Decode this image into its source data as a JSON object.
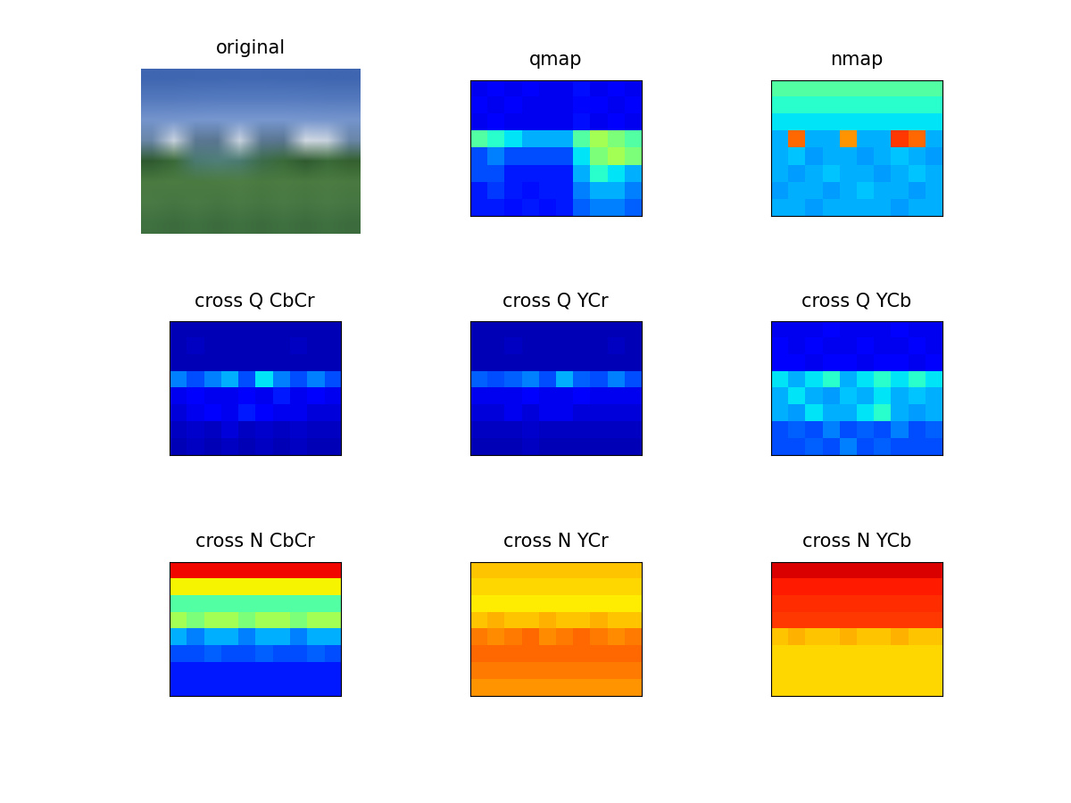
{
  "chart_data": [
    {
      "type": "image",
      "title": "original",
      "tick_labels": false,
      "pixels": [
        [
          "#3f66b0",
          "#3f66b0",
          "#4068b2",
          "#4068b2",
          "#4169b3",
          "#4169b3",
          "#4068b2",
          "#4068b2",
          "#3f66b0",
          "#3f66b0"
        ],
        [
          "#5479bd",
          "#5479bd",
          "#557abe",
          "#567bbf",
          "#567bbf",
          "#567bbf",
          "#567bbf",
          "#557abe",
          "#5479bd",
          "#5479bd"
        ],
        [
          "#7494cc",
          "#7595cd",
          "#7696ce",
          "#7797cf",
          "#7797cf",
          "#7797cf",
          "#7797cf",
          "#7696ce",
          "#7595cd",
          "#7494cc"
        ],
        [
          "#6a86a8",
          "#c8d2df",
          "#5c7894",
          "#5a7692",
          "#c8d2df",
          "#5c7894",
          "#5a7692",
          "#d0d8e2",
          "#c8d2df",
          "#6a86a8"
        ],
        [
          "#2f5a30",
          "#3a6a38",
          "#4a7a70",
          "#4f7f78",
          "#4a7a70",
          "#3c6c4a",
          "#3a6a38",
          "#2f5a30",
          "#3a6a38",
          "#34602f"
        ],
        [
          "#4a7a40",
          "#4c7c42",
          "#4a7a40",
          "#4c7c42",
          "#4e7e44",
          "#4a7a40",
          "#4c7c42",
          "#4a7a40",
          "#4c7c42",
          "#4a7a40"
        ],
        [
          "#4a7a45",
          "#467642",
          "#4a7a45",
          "#467642",
          "#4a7a45",
          "#467642",
          "#4a7a45",
          "#467642",
          "#4a7a45",
          "#467642"
        ],
        [
          "#3f7040",
          "#3c6c3d",
          "#3f7040",
          "#3c6c3d",
          "#3f7040",
          "#3c6c3d",
          "#3f7040",
          "#3c6c3d",
          "#3f7040",
          "#3c6c3d"
        ]
      ]
    },
    {
      "type": "heatmap",
      "title": "qmap",
      "color": "jet",
      "clim": [
        0,
        1
      ],
      "tick_labels": false,
      "cells": [
        [
          0.1,
          0.12,
          0.1,
          0.11,
          0.1,
          0.1,
          0.14,
          0.1,
          0.12,
          0.1
        ],
        [
          0.12,
          0.1,
          0.11,
          0.1,
          0.1,
          0.1,
          0.13,
          0.11,
          0.1,
          0.12
        ],
        [
          0.1,
          0.11,
          0.1,
          0.1,
          0.1,
          0.1,
          0.14,
          0.1,
          0.11,
          0.1
        ],
        [
          0.45,
          0.4,
          0.35,
          0.3,
          0.3,
          0.3,
          0.45,
          0.55,
          0.5,
          0.45
        ],
        [
          0.2,
          0.25,
          0.2,
          0.2,
          0.2,
          0.2,
          0.35,
          0.5,
          0.55,
          0.5
        ],
        [
          0.2,
          0.2,
          0.15,
          0.15,
          0.15,
          0.15,
          0.3,
          0.4,
          0.35,
          0.3
        ],
        [
          0.15,
          0.18,
          0.15,
          0.14,
          0.15,
          0.15,
          0.25,
          0.3,
          0.3,
          0.25
        ],
        [
          0.15,
          0.15,
          0.14,
          0.15,
          0.14,
          0.15,
          0.22,
          0.25,
          0.25,
          0.22
        ]
      ]
    },
    {
      "type": "heatmap",
      "title": "nmap",
      "color": "jet",
      "clim": [
        0,
        1
      ],
      "tick_labels": false,
      "cells": [
        [
          0.45,
          0.45,
          0.45,
          0.45,
          0.45,
          0.45,
          0.45,
          0.45,
          0.45,
          0.45
        ],
        [
          0.4,
          0.4,
          0.4,
          0.4,
          0.4,
          0.4,
          0.4,
          0.4,
          0.4,
          0.4
        ],
        [
          0.35,
          0.35,
          0.35,
          0.35,
          0.35,
          0.35,
          0.35,
          0.35,
          0.35,
          0.35
        ],
        [
          0.3,
          0.8,
          0.3,
          0.3,
          0.75,
          0.3,
          0.3,
          0.85,
          0.8,
          0.3
        ],
        [
          0.3,
          0.32,
          0.28,
          0.3,
          0.3,
          0.28,
          0.3,
          0.32,
          0.3,
          0.28
        ],
        [
          0.3,
          0.28,
          0.3,
          0.32,
          0.3,
          0.3,
          0.28,
          0.3,
          0.32,
          0.3
        ],
        [
          0.28,
          0.3,
          0.3,
          0.28,
          0.3,
          0.32,
          0.3,
          0.3,
          0.28,
          0.3
        ],
        [
          0.3,
          0.3,
          0.28,
          0.3,
          0.3,
          0.3,
          0.3,
          0.28,
          0.3,
          0.3
        ]
      ]
    },
    {
      "type": "heatmap",
      "title": "cross Q CbCr",
      "color": "jet",
      "clim": [
        0,
        1
      ],
      "tick_labels": false,
      "cells": [
        [
          0.05,
          0.05,
          0.05,
          0.05,
          0.05,
          0.05,
          0.05,
          0.05,
          0.05,
          0.05
        ],
        [
          0.05,
          0.06,
          0.05,
          0.05,
          0.05,
          0.05,
          0.05,
          0.06,
          0.05,
          0.05
        ],
        [
          0.05,
          0.05,
          0.05,
          0.05,
          0.05,
          0.05,
          0.05,
          0.05,
          0.05,
          0.05
        ],
        [
          0.25,
          0.2,
          0.25,
          0.3,
          0.2,
          0.35,
          0.25,
          0.2,
          0.25,
          0.2
        ],
        [
          0.1,
          0.12,
          0.1,
          0.1,
          0.12,
          0.1,
          0.15,
          0.1,
          0.12,
          0.1
        ],
        [
          0.08,
          0.1,
          0.12,
          0.1,
          0.15,
          0.12,
          0.1,
          0.1,
          0.08,
          0.08
        ],
        [
          0.06,
          0.07,
          0.06,
          0.08,
          0.06,
          0.07,
          0.06,
          0.07,
          0.06,
          0.06
        ],
        [
          0.05,
          0.06,
          0.05,
          0.06,
          0.05,
          0.06,
          0.05,
          0.06,
          0.05,
          0.05
        ]
      ]
    },
    {
      "type": "heatmap",
      "title": "cross Q YCr",
      "color": "jet",
      "clim": [
        0,
        1
      ],
      "tick_labels": false,
      "cells": [
        [
          0.05,
          0.05,
          0.05,
          0.05,
          0.05,
          0.05,
          0.05,
          0.05,
          0.05,
          0.05
        ],
        [
          0.05,
          0.05,
          0.06,
          0.05,
          0.05,
          0.05,
          0.05,
          0.05,
          0.06,
          0.05
        ],
        [
          0.05,
          0.05,
          0.05,
          0.05,
          0.05,
          0.05,
          0.05,
          0.05,
          0.05,
          0.05
        ],
        [
          0.22,
          0.2,
          0.22,
          0.25,
          0.2,
          0.3,
          0.22,
          0.2,
          0.25,
          0.2
        ],
        [
          0.1,
          0.1,
          0.1,
          0.12,
          0.1,
          0.1,
          0.12,
          0.1,
          0.1,
          0.1
        ],
        [
          0.08,
          0.08,
          0.1,
          0.08,
          0.1,
          0.1,
          0.08,
          0.08,
          0.08,
          0.08
        ],
        [
          0.06,
          0.06,
          0.06,
          0.07,
          0.06,
          0.06,
          0.06,
          0.06,
          0.06,
          0.06
        ],
        [
          0.05,
          0.05,
          0.05,
          0.06,
          0.05,
          0.05,
          0.05,
          0.05,
          0.05,
          0.05
        ]
      ]
    },
    {
      "type": "heatmap",
      "title": "cross Q YCb",
      "color": "jet",
      "clim": [
        0,
        1
      ],
      "tick_labels": false,
      "cells": [
        [
          0.1,
          0.1,
          0.1,
          0.12,
          0.1,
          0.1,
          0.1,
          0.12,
          0.1,
          0.1
        ],
        [
          0.12,
          0.1,
          0.12,
          0.1,
          0.1,
          0.12,
          0.1,
          0.1,
          0.12,
          0.1
        ],
        [
          0.12,
          0.12,
          0.1,
          0.12,
          0.12,
          0.1,
          0.12,
          0.12,
          0.1,
          0.12
        ],
        [
          0.35,
          0.3,
          0.35,
          0.4,
          0.3,
          0.35,
          0.4,
          0.35,
          0.4,
          0.35
        ],
        [
          0.3,
          0.35,
          0.3,
          0.28,
          0.32,
          0.3,
          0.35,
          0.3,
          0.32,
          0.3
        ],
        [
          0.3,
          0.28,
          0.35,
          0.3,
          0.3,
          0.35,
          0.4,
          0.3,
          0.28,
          0.3
        ],
        [
          0.2,
          0.22,
          0.2,
          0.25,
          0.2,
          0.22,
          0.2,
          0.25,
          0.2,
          0.22
        ],
        [
          0.2,
          0.2,
          0.22,
          0.2,
          0.25,
          0.2,
          0.22,
          0.2,
          0.2,
          0.2
        ]
      ]
    },
    {
      "type": "heatmap",
      "title": "cross N CbCr",
      "color": "jet",
      "clim": [
        0,
        1
      ],
      "tick_labels": false,
      "cells": [
        [
          0.9,
          0.9,
          0.9,
          0.9,
          0.9,
          0.9,
          0.9,
          0.9,
          0.9,
          0.9
        ],
        [
          0.65,
          0.65,
          0.65,
          0.65,
          0.65,
          0.65,
          0.65,
          0.65,
          0.65,
          0.65
        ],
        [
          0.45,
          0.45,
          0.45,
          0.45,
          0.45,
          0.45,
          0.45,
          0.45,
          0.45,
          0.45
        ],
        [
          0.55,
          0.5,
          0.55,
          0.55,
          0.5,
          0.55,
          0.55,
          0.5,
          0.55,
          0.55
        ],
        [
          0.3,
          0.25,
          0.3,
          0.3,
          0.25,
          0.3,
          0.3,
          0.25,
          0.3,
          0.3
        ],
        [
          0.2,
          0.2,
          0.22,
          0.2,
          0.2,
          0.22,
          0.2,
          0.2,
          0.22,
          0.2
        ],
        [
          0.15,
          0.15,
          0.15,
          0.15,
          0.15,
          0.15,
          0.15,
          0.15,
          0.15,
          0.15
        ],
        [
          0.15,
          0.15,
          0.15,
          0.15,
          0.15,
          0.15,
          0.15,
          0.15,
          0.15,
          0.15
        ]
      ]
    },
    {
      "type": "heatmap",
      "title": "cross N YCr",
      "color": "jet",
      "clim": [
        0,
        1
      ],
      "tick_labels": false,
      "cells": [
        [
          0.7,
          0.7,
          0.7,
          0.7,
          0.7,
          0.7,
          0.7,
          0.7,
          0.7,
          0.7
        ],
        [
          0.68,
          0.68,
          0.68,
          0.68,
          0.68,
          0.68,
          0.68,
          0.68,
          0.68,
          0.68
        ],
        [
          0.66,
          0.66,
          0.66,
          0.66,
          0.66,
          0.66,
          0.66,
          0.66,
          0.66,
          0.66
        ],
        [
          0.7,
          0.72,
          0.7,
          0.7,
          0.72,
          0.7,
          0.7,
          0.72,
          0.7,
          0.7
        ],
        [
          0.78,
          0.76,
          0.78,
          0.8,
          0.76,
          0.78,
          0.8,
          0.78,
          0.76,
          0.78
        ],
        [
          0.8,
          0.8,
          0.8,
          0.8,
          0.8,
          0.8,
          0.8,
          0.8,
          0.8,
          0.8
        ],
        [
          0.78,
          0.78,
          0.78,
          0.78,
          0.78,
          0.78,
          0.78,
          0.78,
          0.78,
          0.78
        ],
        [
          0.75,
          0.75,
          0.75,
          0.75,
          0.75,
          0.75,
          0.75,
          0.75,
          0.75,
          0.75
        ]
      ]
    },
    {
      "type": "heatmap",
      "title": "cross N YCb",
      "color": "jet",
      "clim": [
        0,
        1
      ],
      "tick_labels": false,
      "cells": [
        [
          0.92,
          0.92,
          0.92,
          0.92,
          0.92,
          0.92,
          0.92,
          0.92,
          0.92,
          0.92
        ],
        [
          0.88,
          0.88,
          0.88,
          0.88,
          0.88,
          0.88,
          0.88,
          0.88,
          0.88,
          0.88
        ],
        [
          0.86,
          0.86,
          0.86,
          0.86,
          0.86,
          0.86,
          0.86,
          0.86,
          0.86,
          0.86
        ],
        [
          0.85,
          0.85,
          0.85,
          0.85,
          0.85,
          0.85,
          0.85,
          0.85,
          0.85,
          0.85
        ],
        [
          0.7,
          0.72,
          0.7,
          0.7,
          0.72,
          0.7,
          0.7,
          0.72,
          0.7,
          0.7
        ],
        [
          0.68,
          0.68,
          0.68,
          0.68,
          0.68,
          0.68,
          0.68,
          0.68,
          0.68,
          0.68
        ],
        [
          0.68,
          0.68,
          0.68,
          0.68,
          0.68,
          0.68,
          0.68,
          0.68,
          0.68,
          0.68
        ],
        [
          0.68,
          0.68,
          0.68,
          0.68,
          0.68,
          0.68,
          0.68,
          0.68,
          0.68,
          0.68
        ]
      ]
    }
  ]
}
